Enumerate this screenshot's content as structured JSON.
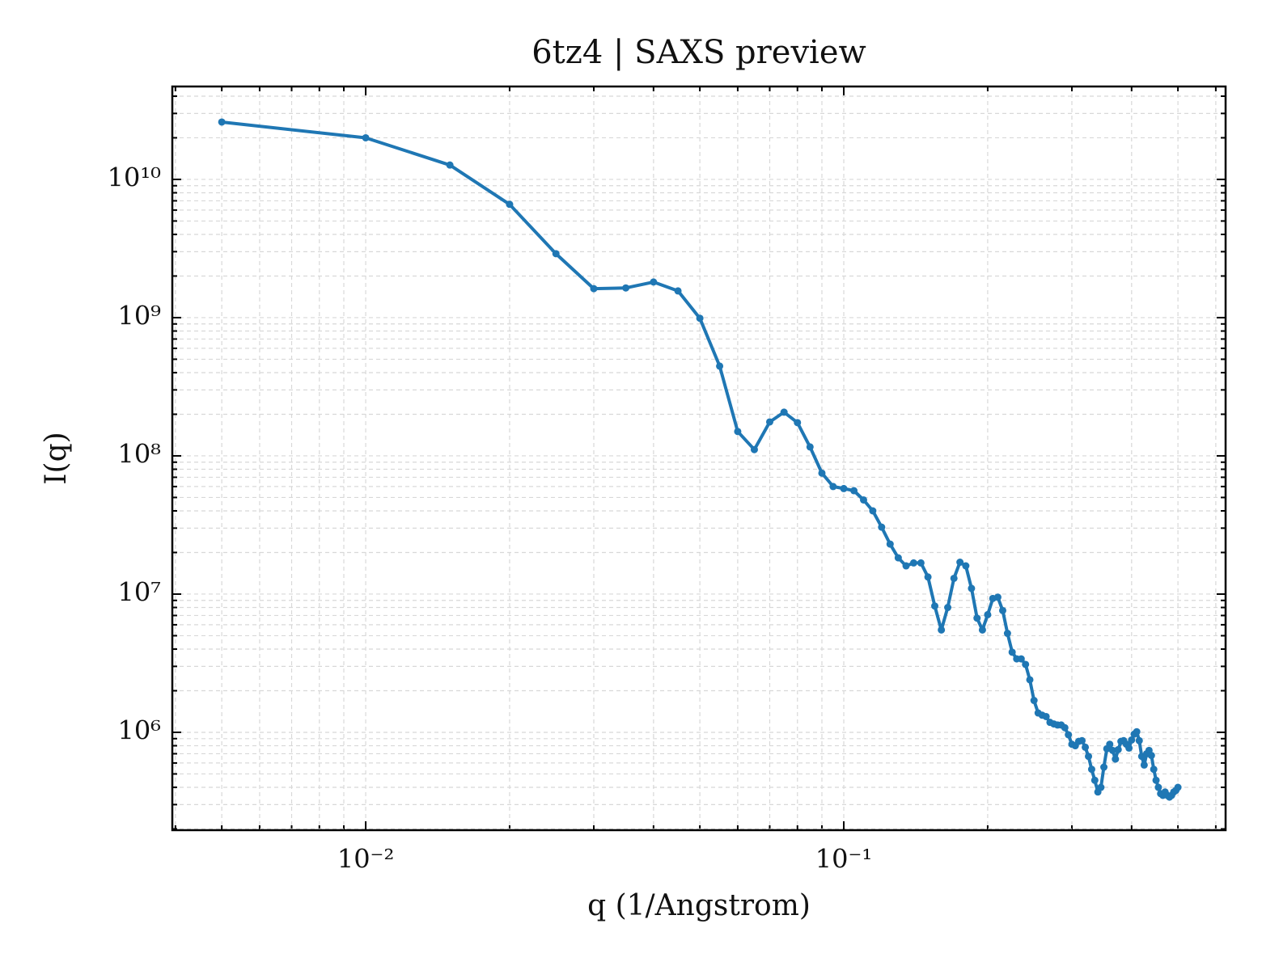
{
  "chart_data": {
    "type": "line",
    "title": "6tz4 | SAXS preview",
    "xlabel": "q (1/Angstrom)",
    "ylabel": "I(q)",
    "x": [
      0.005,
      0.01,
      0.015,
      0.02,
      0.025,
      0.03,
      0.035,
      0.04,
      0.045,
      0.05,
      0.055,
      0.06,
      0.065,
      0.07,
      0.075,
      0.08,
      0.085,
      0.09,
      0.095,
      0.1,
      0.105,
      0.11,
      0.115,
      0.12,
      0.125,
      0.13,
      0.135,
      0.14,
      0.145,
      0.15,
      0.155,
      0.16,
      0.165,
      0.17,
      0.175,
      0.18,
      0.185,
      0.19,
      0.195,
      0.2,
      0.205,
      0.21,
      0.215,
      0.22,
      0.225,
      0.23,
      0.235,
      0.24,
      0.245,
      0.25,
      0.255,
      0.26,
      0.265,
      0.27,
      0.275,
      0.28,
      0.285,
      0.29,
      0.295,
      0.3,
      0.305,
      0.31,
      0.315,
      0.32,
      0.325,
      0.33,
      0.335,
      0.34,
      0.345,
      0.35,
      0.355,
      0.36,
      0.365,
      0.37,
      0.375,
      0.38,
      0.385,
      0.39,
      0.395,
      0.4,
      0.405,
      0.41,
      0.415,
      0.42,
      0.425,
      0.43,
      0.435,
      0.44,
      0.445,
      0.45,
      0.455,
      0.46,
      0.465,
      0.47,
      0.475,
      0.48,
      0.485,
      0.49,
      0.495,
      0.5
    ],
    "series": [
      {
        "color": "#1f77b4",
        "values": [
          26000000000.0,
          20000000000.0,
          12700000000.0,
          6600000000.0,
          2900000000.0,
          1620000000.0,
          1640000000.0,
          1810000000.0,
          1560000000.0,
          990000000.0,
          446000000.0,
          150000000.0,
          111000000.0,
          176000000.0,
          207000000.0,
          174000000.0,
          116000000.0,
          75000000.0,
          60000000.0,
          58000000.0,
          56000000.0,
          48000000.0,
          40000000.0,
          30500000.0,
          23000000.0,
          18300000.0,
          16000000.0,
          16800000.0,
          16800000.0,
          13300000.0,
          8200000.0,
          5500000.0,
          8000000.0,
          13000000.0,
          17000000.0,
          16000000.0,
          11000000.0,
          6700000.0,
          5500000.0,
          7100000.0,
          9300000.0,
          9500000.0,
          7600000.0,
          5200000.0,
          3800000.0,
          3400000.0,
          3400000.0,
          3100000.0,
          2400000.0,
          1700000.0,
          1380000.0,
          1330000.0,
          1300000.0,
          1180000.0,
          1150000.0,
          1130000.0,
          1130000.0,
          1080000.0,
          960000.0,
          820000.0,
          800000.0,
          860000.0,
          870000.0,
          780000.0,
          670000.0,
          540000.0,
          450000.0,
          370000.0,
          400000.0,
          560000.0,
          760000.0,
          820000.0,
          740000.0,
          640000.0,
          750000.0,
          860000.0,
          870000.0,
          820000.0,
          770000.0,
          880000.0,
          970000.0,
          1010000.0,
          870000.0,
          670000.0,
          580000.0,
          700000.0,
          740000.0,
          680000.0,
          540000.0,
          450000.0,
          400000.0,
          360000.0,
          350000.0,
          370000.0,
          350000.0,
          340000.0,
          350000.0,
          370000.0,
          380000.0,
          400000.0
        ]
      }
    ],
    "xlog": true,
    "ylog": true,
    "grid": true,
    "xlim": [
      0.00394,
      0.629
    ],
    "ylim": [
      196000,
      47000000000.0
    ],
    "xticks": [
      {
        "value": 0.01,
        "label": "10⁻²"
      },
      {
        "value": 0.1,
        "label": "10⁻¹"
      }
    ],
    "yticks": [
      {
        "value": 1000000.0,
        "label": "10⁶"
      },
      {
        "value": 10000000.0,
        "label": "10⁷"
      },
      {
        "value": 100000000.0,
        "label": "10⁸"
      },
      {
        "value": 1000000000.0,
        "label": "10⁹"
      },
      {
        "value": 10000000000.0,
        "label": "10¹⁰"
      }
    ],
    "xminorticks": [
      0.004,
      0.005,
      0.006,
      0.007,
      0.008,
      0.009,
      0.02,
      0.03,
      0.04,
      0.05,
      0.06,
      0.07,
      0.08,
      0.09,
      0.2,
      0.3,
      0.4,
      0.5,
      0.6
    ],
    "yminorticks": [
      200000.0,
      300000.0,
      400000.0,
      500000.0,
      600000.0,
      700000.0,
      800000.0,
      900000.0,
      2000000.0,
      3000000.0,
      4000000.0,
      5000000.0,
      6000000.0,
      7000000.0,
      8000000.0,
      9000000.0,
      20000000.0,
      30000000.0,
      40000000.0,
      50000000.0,
      60000000.0,
      70000000.0,
      80000000.0,
      90000000.0,
      200000000.0,
      300000000.0,
      400000000.0,
      500000000.0,
      600000000.0,
      700000000.0,
      800000000.0,
      900000000.0,
      2000000000.0,
      3000000000.0,
      4000000000.0,
      5000000000.0,
      6000000000.0,
      7000000000.0,
      8000000000.0,
      9000000000.0,
      20000000000.0,
      30000000000.0,
      40000000000.0
    ]
  }
}
